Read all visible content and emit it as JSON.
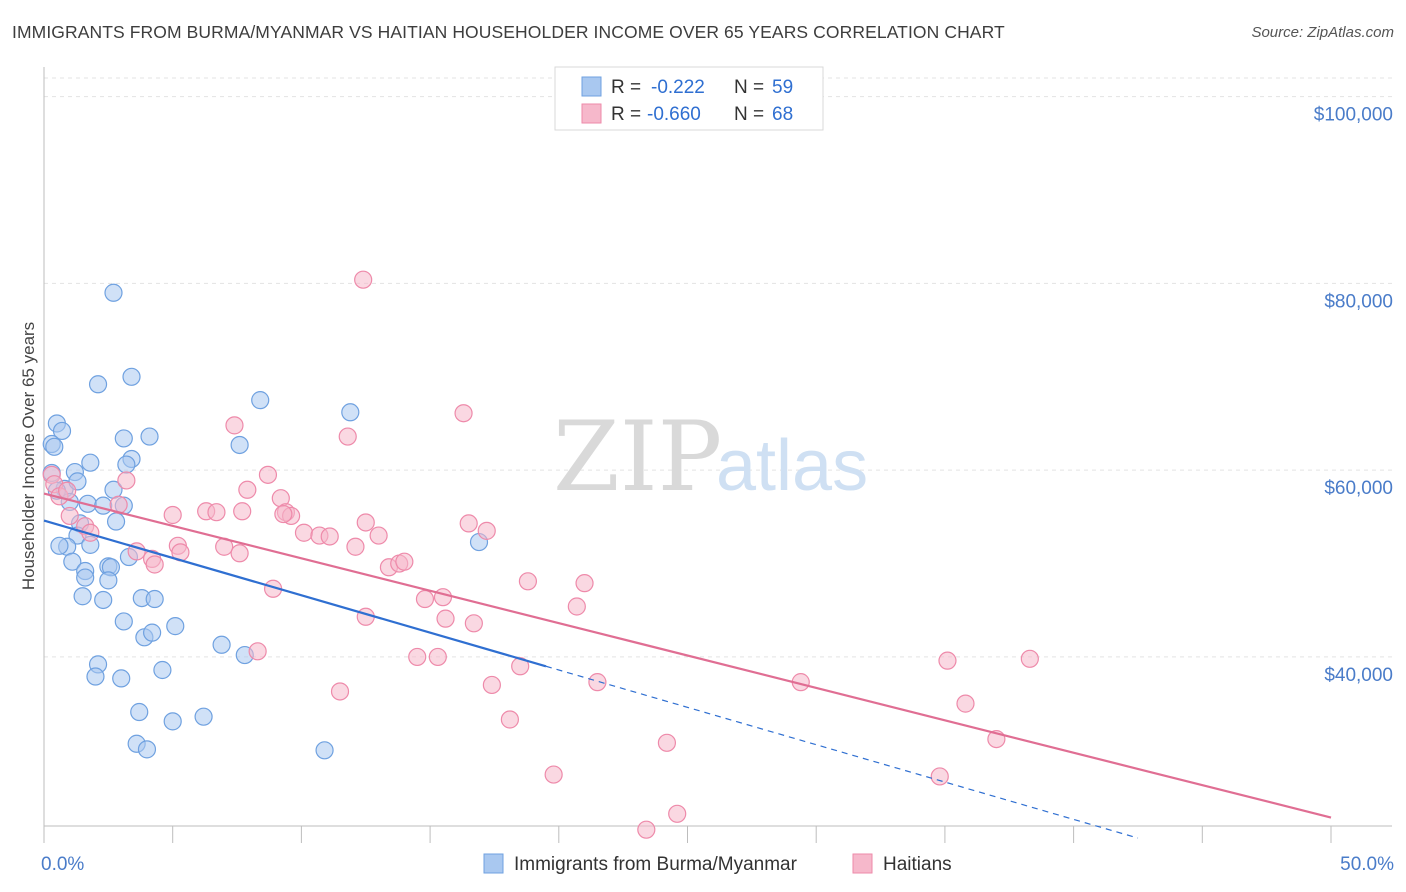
{
  "title": "IMMIGRANTS FROM BURMA/MYANMAR VS HAITIAN HOUSEHOLDER INCOME OVER 65 YEARS CORRELATION CHART",
  "source": "Source: ZipAtlas.com",
  "watermark": {
    "zip": "ZIP",
    "atlas": "atlas"
  },
  "legend": {
    "rows": [
      {
        "r_label": "R =",
        "r_value": "-0.222",
        "n_label": "N =",
        "n_value": "59",
        "color": "#a9c8f0"
      },
      {
        "r_label": "R =",
        "r_value": "-0.660",
        "n_label": "N =",
        "n_value": "68",
        "color": "#f6b8cb"
      }
    ]
  },
  "bottom_legend": [
    {
      "label": "Immigrants from Burma/Myanmar",
      "color": "#a9c8f0"
    },
    {
      "label": "Haitians",
      "color": "#f6b8cb"
    }
  ],
  "chart_data": {
    "type": "scatter",
    "ylabel": "Householder Income Over 65 years",
    "xlim": [
      0,
      50
    ],
    "ylim": [
      22000,
      102000
    ],
    "x_tick_labels": [
      {
        "x": 0,
        "label": "0.0%"
      },
      {
        "x": 50,
        "label": "50.0%"
      }
    ],
    "y_ticks": [
      {
        "y": 40000,
        "label": "$40,000"
      },
      {
        "y": 60000,
        "label": "$60,000"
      },
      {
        "y": 80000,
        "label": "$80,000"
      },
      {
        "y": 100000,
        "label": "$100,000"
      }
    ],
    "series": [
      {
        "name": "Immigrants from Burma/Myanmar",
        "color": "#6fa1e0",
        "fill": "#a9c8f0",
        "trend": {
          "x0": 0,
          "y0": 54600,
          "x1": 19.5,
          "y1": 39000,
          "dash_x1": 42.5,
          "dash_y1": 20600,
          "color": "#2f6fd1"
        },
        "points": [
          [
            2.7,
            79000
          ],
          [
            2.1,
            69200
          ],
          [
            3.4,
            70000
          ],
          [
            0.5,
            65000
          ],
          [
            0.7,
            64200
          ],
          [
            0.3,
            62800
          ],
          [
            4.1,
            63600
          ],
          [
            3.1,
            63400
          ],
          [
            3.4,
            61200
          ],
          [
            3.2,
            60600
          ],
          [
            1.8,
            60800
          ],
          [
            1.2,
            59800
          ],
          [
            0.3,
            59700
          ],
          [
            0.8,
            58000
          ],
          [
            0.5,
            57800
          ],
          [
            1.3,
            58800
          ],
          [
            2.7,
            57900
          ],
          [
            1.0,
            56600
          ],
          [
            1.7,
            56400
          ],
          [
            2.3,
            56200
          ],
          [
            3.1,
            56200
          ],
          [
            2.8,
            54500
          ],
          [
            1.4,
            54300
          ],
          [
            1.3,
            53000
          ],
          [
            1.8,
            52000
          ],
          [
            0.9,
            51800
          ],
          [
            0.6,
            51900
          ],
          [
            1.1,
            50200
          ],
          [
            3.3,
            50700
          ],
          [
            1.6,
            49200
          ],
          [
            2.5,
            49700
          ],
          [
            2.6,
            49600
          ],
          [
            1.6,
            48500
          ],
          [
            2.5,
            48200
          ],
          [
            3.8,
            46300
          ],
          [
            4.3,
            46200
          ],
          [
            2.3,
            46100
          ],
          [
            3.1,
            43800
          ],
          [
            5.1,
            43300
          ],
          [
            3.9,
            42100
          ],
          [
            4.2,
            42600
          ],
          [
            6.9,
            41300
          ],
          [
            7.8,
            40200
          ],
          [
            2.1,
            39200
          ],
          [
            2.0,
            37900
          ],
          [
            3.0,
            37700
          ],
          [
            4.6,
            38600
          ],
          [
            3.7,
            34100
          ],
          [
            5.0,
            33100
          ],
          [
            6.2,
            33600
          ],
          [
            3.6,
            30700
          ],
          [
            4.0,
            30100
          ],
          [
            10.9,
            30000
          ],
          [
            7.6,
            62700
          ],
          [
            8.4,
            67500
          ],
          [
            11.9,
            66200
          ],
          [
            16.9,
            52300
          ],
          [
            1.5,
            46500
          ],
          [
            0.4,
            62500
          ]
        ]
      },
      {
        "name": "Haitians",
        "color": "#ee8aaa",
        "fill": "#f6b8cb",
        "trend": {
          "x0": 0,
          "y0": 57500,
          "x1": 50,
          "y1": 22800,
          "color": "#e06e93"
        },
        "points": [
          [
            0.3,
            59500
          ],
          [
            0.4,
            58500
          ],
          [
            0.6,
            57200
          ],
          [
            1.0,
            55100
          ],
          [
            1.6,
            54000
          ],
          [
            1.8,
            53300
          ],
          [
            2.9,
            56300
          ],
          [
            3.2,
            58900
          ],
          [
            3.6,
            51300
          ],
          [
            4.2,
            50500
          ],
          [
            4.3,
            49900
          ],
          [
            5.0,
            55200
          ],
          [
            5.2,
            51900
          ],
          [
            5.3,
            51200
          ],
          [
            6.3,
            55600
          ],
          [
            6.7,
            55500
          ],
          [
            7.0,
            51800
          ],
          [
            7.4,
            64800
          ],
          [
            7.6,
            51100
          ],
          [
            7.7,
            55600
          ],
          [
            7.9,
            57900
          ],
          [
            8.3,
            40600
          ],
          [
            8.7,
            59500
          ],
          [
            8.9,
            47300
          ],
          [
            9.2,
            57000
          ],
          [
            9.4,
            55500
          ],
          [
            9.6,
            55100
          ],
          [
            10.1,
            53300
          ],
          [
            10.7,
            53000
          ],
          [
            11.1,
            52900
          ],
          [
            11.5,
            36300
          ],
          [
            11.8,
            63600
          ],
          [
            12.1,
            51800
          ],
          [
            12.4,
            80400
          ],
          [
            12.5,
            54400
          ],
          [
            13.0,
            53000
          ],
          [
            13.4,
            49600
          ],
          [
            13.8,
            50000
          ],
          [
            14.0,
            50200
          ],
          [
            14.5,
            40000
          ],
          [
            14.8,
            46200
          ],
          [
            15.3,
            40000
          ],
          [
            15.5,
            46400
          ],
          [
            15.6,
            44100
          ],
          [
            16.3,
            66100
          ],
          [
            16.5,
            54300
          ],
          [
            16.7,
            43600
          ],
          [
            17.2,
            53500
          ],
          [
            17.4,
            37000
          ],
          [
            18.1,
            33300
          ],
          [
            18.5,
            39000
          ],
          [
            18.8,
            48100
          ],
          [
            19.8,
            27400
          ],
          [
            20.7,
            45400
          ],
          [
            21.0,
            47900
          ],
          [
            21.5,
            37300
          ],
          [
            23.4,
            21500
          ],
          [
            24.2,
            30800
          ],
          [
            24.6,
            23200
          ],
          [
            29.4,
            37300
          ],
          [
            34.8,
            27200
          ],
          [
            35.1,
            39600
          ],
          [
            35.8,
            35000
          ],
          [
            37.0,
            31200
          ],
          [
            38.3,
            39800
          ],
          [
            9.3,
            55300
          ],
          [
            0.9,
            57800
          ],
          [
            12.5,
            44300
          ]
        ]
      }
    ],
    "grid": true
  }
}
